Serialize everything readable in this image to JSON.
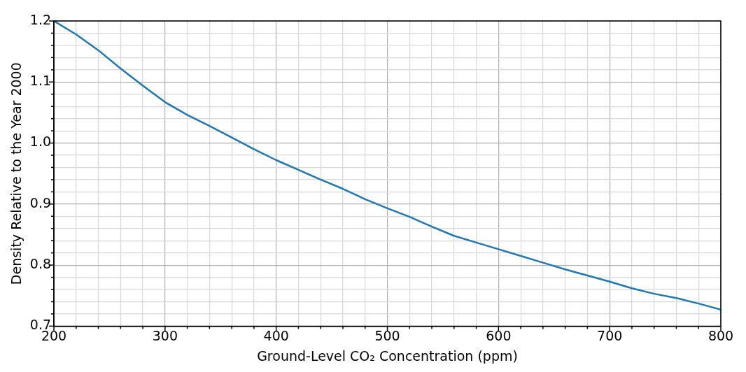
{
  "chart_data": {
    "type": "line",
    "xlabel": "Ground-Level CO₂ Concentration (ppm)",
    "ylabel": "Density Relative to the Year 2000",
    "x": [
      200,
      220,
      240,
      260,
      280,
      300,
      320,
      340,
      360,
      380,
      400,
      420,
      440,
      460,
      480,
      500,
      520,
      540,
      560,
      580,
      600,
      620,
      640,
      660,
      680,
      700,
      720,
      740,
      760,
      780,
      800
    ],
    "series": [
      {
        "color": "#1f77b4",
        "values": [
          1.2,
          1.178,
          1.152,
          1.122,
          1.094,
          1.067,
          1.046,
          1.028,
          1.009,
          0.99,
          0.972,
          0.956,
          0.94,
          0.925,
          0.908,
          0.893,
          0.879,
          0.863,
          0.848,
          0.837,
          0.826,
          0.815,
          0.804,
          0.793,
          0.783,
          0.773,
          0.762,
          0.753,
          0.746,
          0.737,
          0.727
        ]
      }
    ],
    "xlim": [
      200,
      800
    ],
    "ylim": [
      0.7,
      1.2
    ],
    "xticks": [
      200,
      {
        "value": 220,
        "label": null
      },
      {
        "value": 240,
        "label": null
      },
      {
        "value": 260,
        "label": null
      },
      {
        "value": 280,
        "label": null
      },
      300,
      {
        "value": 320,
        "label": null
      },
      {
        "value": 340,
        "label": null
      },
      {
        "value": 360,
        "label": null
      },
      {
        "value": 380,
        "label": null
      },
      400,
      {
        "value": 420,
        "label": null
      },
      {
        "value": 440,
        "label": null
      },
      {
        "value": 460,
        "label": null
      },
      {
        "value": 480,
        "label": null
      },
      500,
      {
        "value": 520,
        "label": null
      },
      {
        "value": 540,
        "label": null
      },
      {
        "value": 560,
        "label": null
      },
      {
        "value": 580,
        "label": null
      },
      600,
      {
        "value": 620,
        "label": null
      },
      {
        "value": 640,
        "label": null
      },
      {
        "value": 660,
        "label": null
      },
      {
        "value": 680,
        "label": null
      },
      700,
      {
        "value": 720,
        "label": null
      },
      {
        "value": 740,
        "label": null
      },
      {
        "value": 760,
        "label": null
      },
      {
        "value": 780,
        "label": null
      },
      800
    ],
    "yticks": [
      {
        "value": 0.7,
        "label": "0.7"
      },
      {
        "value": 0.72,
        "label": null
      },
      {
        "value": 0.74,
        "label": null
      },
      {
        "value": 0.76,
        "label": null
      },
      {
        "value": 0.78,
        "label": null
      },
      {
        "value": 0.8,
        "label": "0.8"
      },
      {
        "value": 0.82,
        "label": null
      },
      {
        "value": 0.84,
        "label": null
      },
      {
        "value": 0.86,
        "label": null
      },
      {
        "value": 0.88,
        "label": null
      },
      {
        "value": 0.9,
        "label": "0.9"
      },
      {
        "value": 0.92,
        "label": null
      },
      {
        "value": 0.94,
        "label": null
      },
      {
        "value": 0.96,
        "label": null
      },
      {
        "value": 0.98,
        "label": null
      },
      {
        "value": 1.0,
        "label": "1.0"
      },
      {
        "value": 1.02,
        "label": null
      },
      {
        "value": 1.04,
        "label": null
      },
      {
        "value": 1.06,
        "label": null
      },
      {
        "value": 1.08,
        "label": null
      },
      {
        "value": 1.1,
        "label": "1.1"
      },
      {
        "value": 1.12,
        "label": null
      },
      {
        "value": 1.14,
        "label": null
      },
      {
        "value": 1.16,
        "label": null
      },
      {
        "value": 1.18,
        "label": null
      },
      {
        "value": 1.2,
        "label": "1.2"
      }
    ],
    "grid": true,
    "legend": false,
    "marker": "none",
    "line_style": "solid"
  }
}
